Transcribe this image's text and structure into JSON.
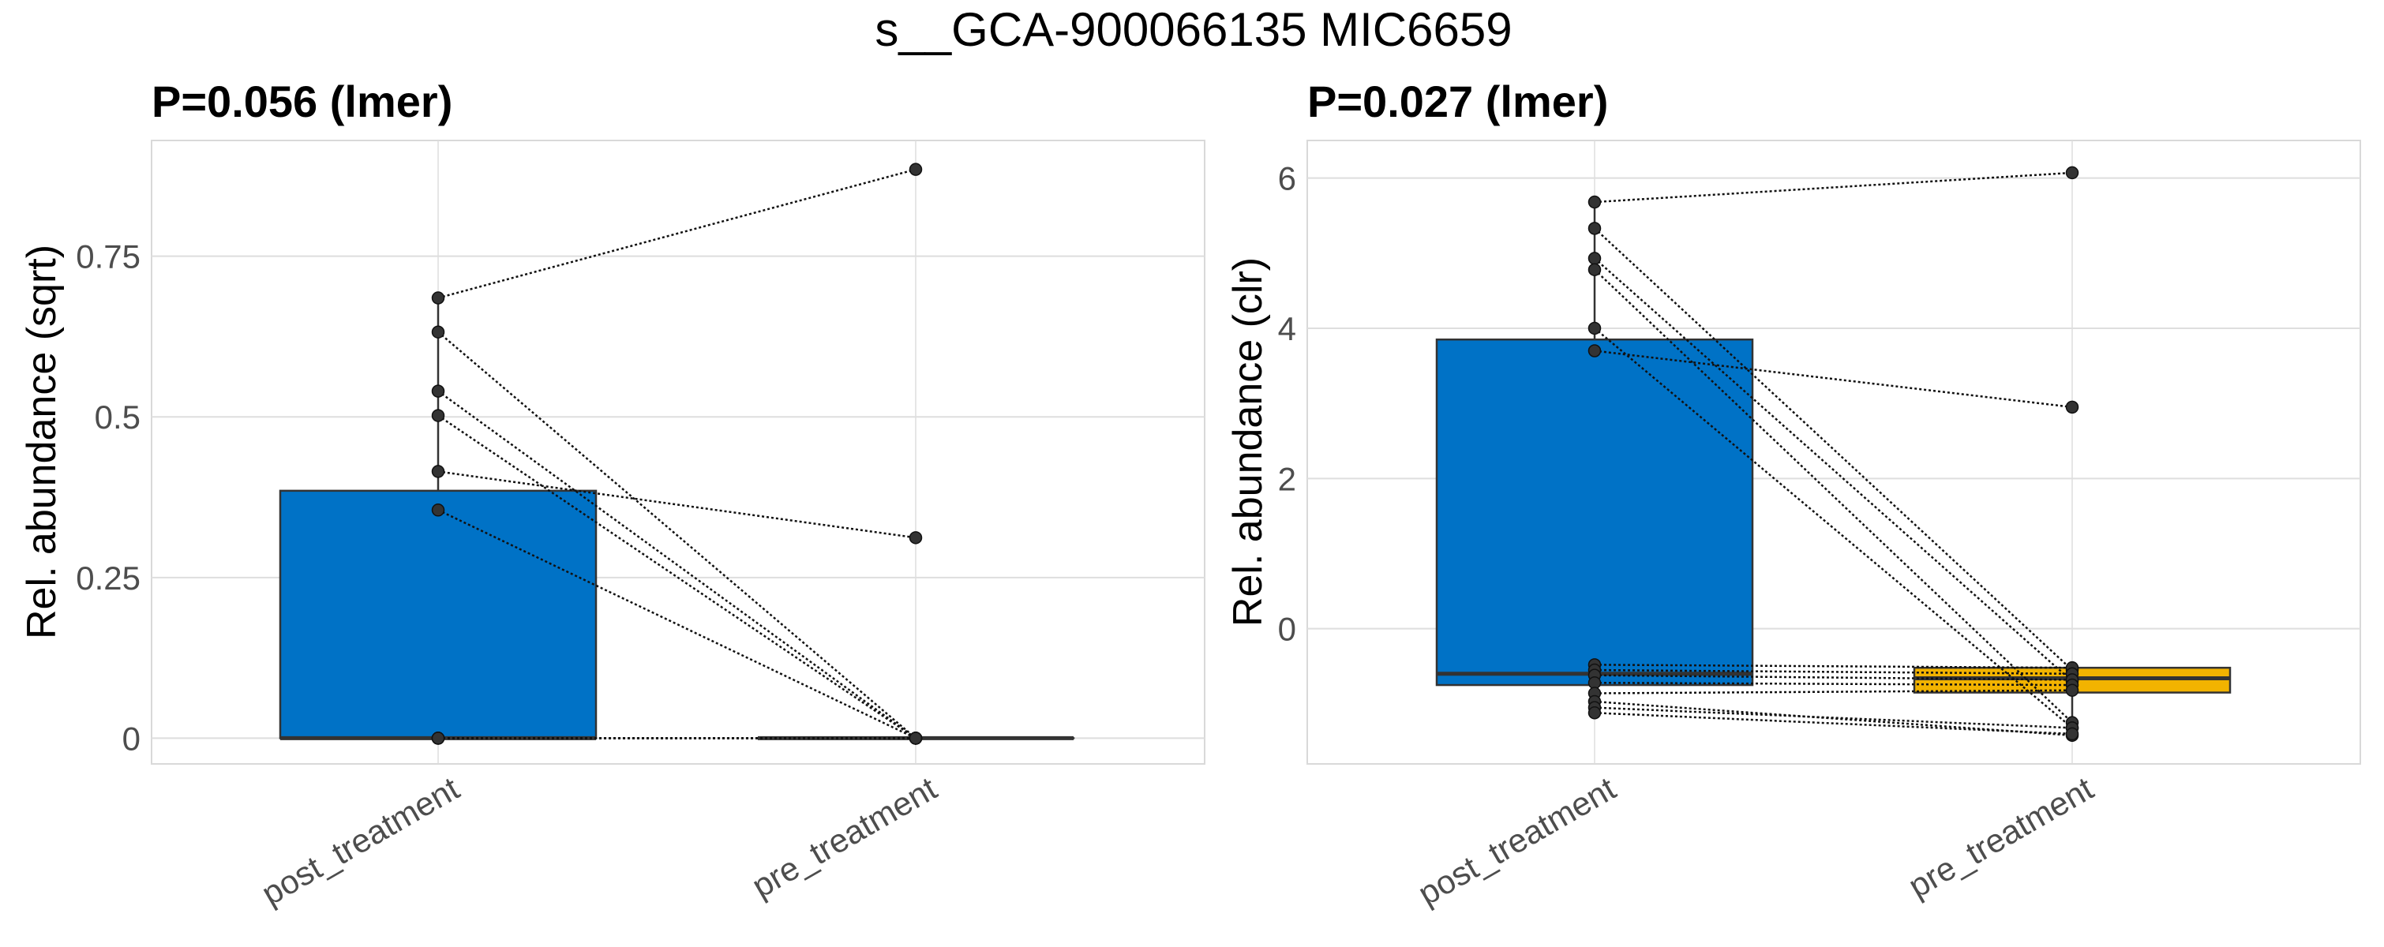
{
  "title": "s__GCA-900066135 MIC6659",
  "colors": {
    "post_treatment": "#0072C6",
    "pre_treatment": "#F2B300",
    "grid": "#DEDEDE",
    "panel_border": "#D9D9D9",
    "point": "#333333"
  },
  "chart_data": [
    {
      "type": "box",
      "title": "P=0.056 (lmer)",
      "ylabel": "Rel. abundance (sqrt)",
      "categories": [
        "post_treatment",
        "pre_treatment"
      ],
      "ylim": [
        -0.04,
        0.93
      ],
      "yticks": [
        0,
        0.25,
        0.5,
        0.75
      ],
      "ytick_labels": [
        "0",
        "0.25",
        "0.5",
        "0.75"
      ],
      "grid": true,
      "boxes": [
        {
          "category": "post_treatment",
          "q1": 0,
          "median": 0,
          "q3": 0.385,
          "whisker_low": 0,
          "whisker_high": 0.685
        },
        {
          "category": "pre_treatment",
          "q1": 0,
          "median": 0,
          "q3": 0,
          "whisker_low": 0,
          "whisker_high": 0
        }
      ],
      "pairs": [
        [
          0.685,
          0.885
        ],
        [
          0.632,
          0
        ],
        [
          0.54,
          0
        ],
        [
          0.502,
          0
        ],
        [
          0.415,
          0.312
        ],
        [
          0.355,
          0
        ],
        [
          0,
          0
        ],
        [
          0,
          0
        ],
        [
          0,
          0
        ],
        [
          0,
          0
        ],
        [
          0,
          0
        ],
        [
          0,
          0
        ]
      ]
    },
    {
      "type": "box",
      "title": "P=0.027 (lmer)",
      "ylabel": "Rel. abundance (clr)",
      "categories": [
        "post_treatment",
        "pre_treatment"
      ],
      "ylim": [
        -1.8,
        6.5
      ],
      "yticks": [
        0,
        2,
        4,
        6
      ],
      "ytick_labels": [
        "0",
        "2",
        "4",
        "6"
      ],
      "grid": true,
      "boxes": [
        {
          "category": "post_treatment",
          "q1": -0.75,
          "median": -0.6,
          "q3": 3.85,
          "whisker_low": -1.1,
          "whisker_high": 5.68
        },
        {
          "category": "pre_treatment",
          "q1": -0.85,
          "median": -0.66,
          "q3": -0.52,
          "whisker_low": -1.42,
          "whisker_high": -0.52
        }
      ],
      "pairs": [
        [
          5.68,
          6.07
        ],
        [
          5.33,
          -0.55
        ],
        [
          4.93,
          -0.7
        ],
        [
          4.78,
          -1.25
        ],
        [
          4.0,
          -1.32
        ],
        [
          3.7,
          2.95
        ],
        [
          -0.48,
          -0.52
        ],
        [
          -0.55,
          -0.6
        ],
        [
          -0.62,
          -0.68
        ],
        [
          -0.72,
          -0.75
        ],
        [
          -0.86,
          -0.82
        ],
        [
          -0.97,
          -1.42
        ],
        [
          -1.05,
          -1.32
        ],
        [
          -1.12,
          -1.4
        ]
      ]
    }
  ]
}
